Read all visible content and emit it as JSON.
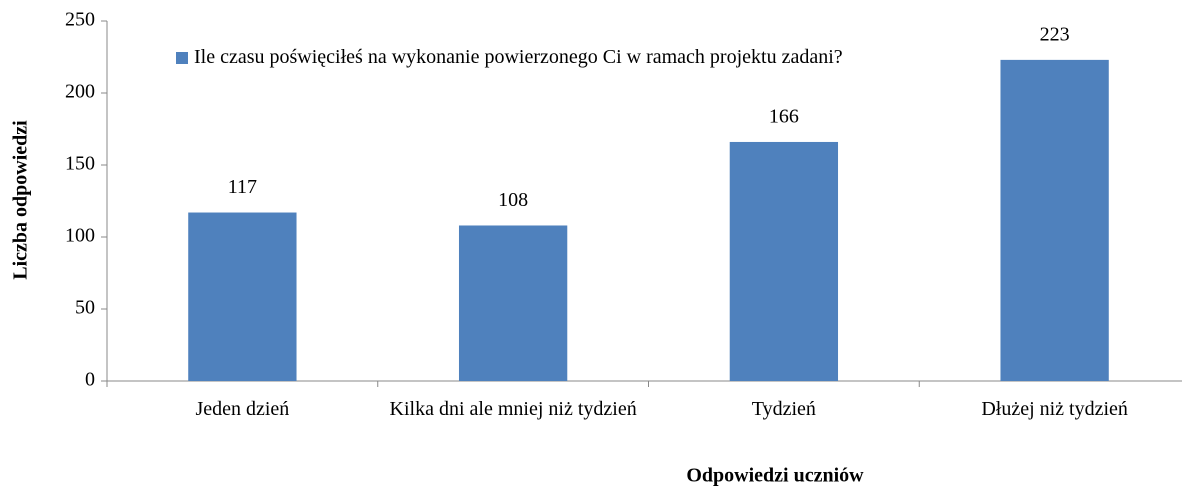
{
  "chart_data": {
    "type": "bar",
    "x_label": "Odpowiedzi uczniów",
    "y_label": "Liczba odpowiedzi",
    "categories": [
      "Jeden dzień",
      "Kilka dni ale mniej niż tydzień",
      "Tydzień",
      "Dłużej niż tydzień"
    ],
    "series": [
      {
        "name": "Ile czasu poświęciłeś na wykonanie powierzonego Ci w ramach projektu zadani?",
        "color": "#4f81bd",
        "values": [
          117,
          108,
          166,
          223
        ]
      }
    ],
    "ylim": [
      0,
      250
    ],
    "yticks": [
      0,
      50,
      100,
      150,
      200,
      250
    ],
    "legend": "top-left",
    "grid": false
  }
}
